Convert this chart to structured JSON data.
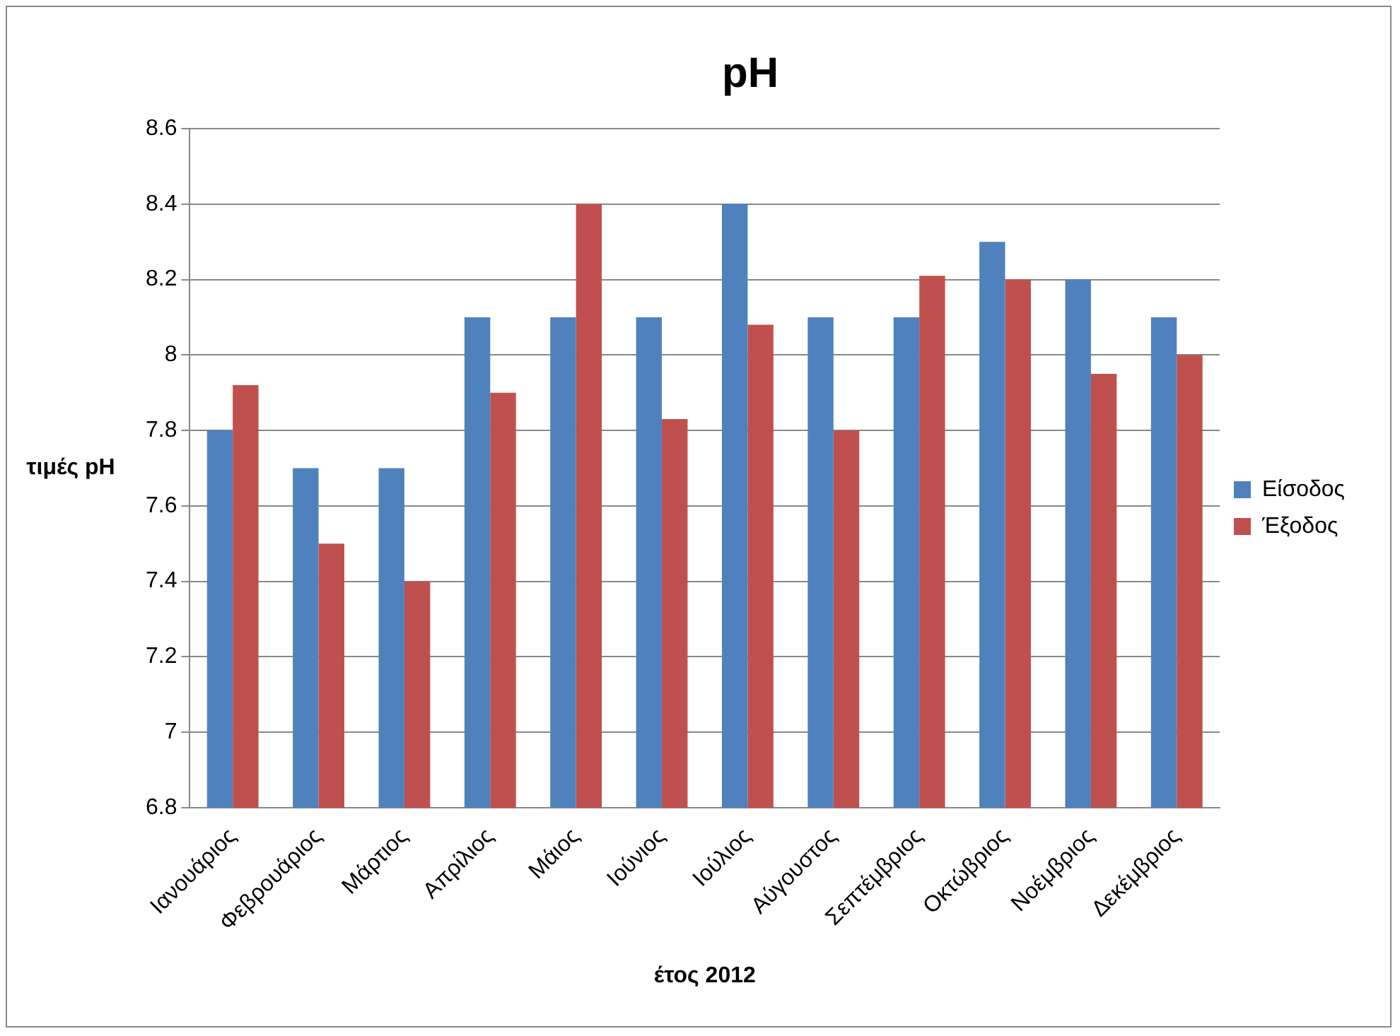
{
  "chart_data": {
    "type": "bar",
    "title": "pH",
    "xlabel": "έτος 2012",
    "ylabel": "τιμές pH",
    "categories": [
      "Ιανουάριος",
      "Φεβρουάριος",
      "Μάρτιος",
      "Απρίλιος",
      "Μάιος",
      "Ιούνιος",
      "Ιούλιος",
      "Αύγουστος",
      "Σεπτέμβριος",
      "Οκτώβριος",
      "Νοέμβριος",
      "Δεκέμβριος"
    ],
    "series": [
      {
        "name": "Είσοδος",
        "color": "#4f81bd",
        "values": [
          7.8,
          7.7,
          7.7,
          8.1,
          8.1,
          8.1,
          8.4,
          8.1,
          8.1,
          8.3,
          8.2,
          8.1
        ]
      },
      {
        "name": "Έξοδος",
        "color": "#c0504d",
        "values": [
          7.92,
          7.5,
          7.4,
          7.9,
          8.4,
          7.83,
          8.08,
          7.8,
          8.21,
          8.2,
          7.95,
          8.0
        ]
      }
    ],
    "ylim": [
      6.8,
      8.6
    ],
    "yticks": [
      6.8,
      7,
      7.2,
      7.4,
      7.6,
      7.8,
      8,
      8.2,
      8.4,
      8.6
    ],
    "grid": "y",
    "legend": "right"
  }
}
